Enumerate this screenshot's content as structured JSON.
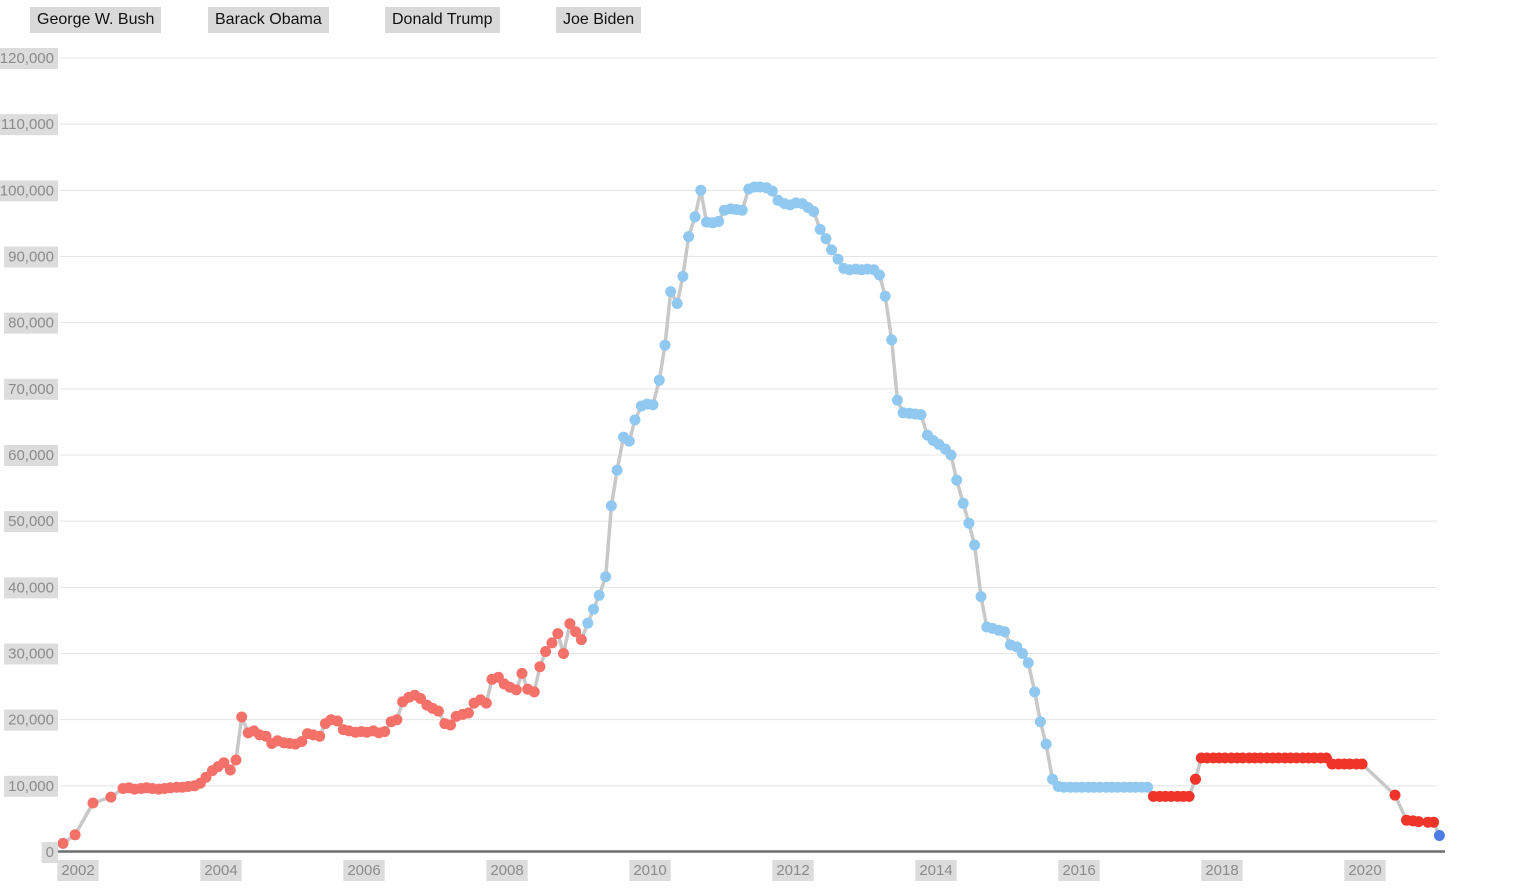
{
  "legend": {
    "items": [
      {
        "label": "George W. Bush"
      },
      {
        "label": "Barack Obama"
      },
      {
        "label": "Donald Trump"
      },
      {
        "label": "Joe Biden"
      }
    ]
  },
  "chart_data": {
    "type": "line",
    "title": "",
    "xlabel": "",
    "ylabel": "",
    "grid": true,
    "legend_position": "top-left",
    "xlim": [
      2001.55,
      2021.35
    ],
    "ylim": [
      0,
      120000
    ],
    "x_ticks": {
      "values": [
        2002,
        2004,
        2006,
        2008,
        2010,
        2012,
        2014,
        2016,
        2018,
        2020
      ],
      "labels": [
        "2002",
        "2004",
        "2006",
        "2008",
        "2010",
        "2012",
        "2014",
        "2016",
        "2018",
        "2020"
      ]
    },
    "y_ticks": {
      "values": [
        0,
        10000,
        20000,
        30000,
        40000,
        50000,
        60000,
        70000,
        80000,
        90000,
        100000,
        110000,
        120000
      ],
      "labels": [
        "0",
        "10,000",
        "20,000",
        "30,000",
        "40,000",
        "50,000",
        "60,000",
        "70,000",
        "80,000",
        "90,000",
        "100,000",
        "110,000",
        "120,000"
      ]
    },
    "colors": {
      "connector_line": "#c8c8c8",
      "gridline": "#e4e4e4",
      "axis_line": "#6f6f6f",
      "tick_text": "#8b8b8b",
      "tick_bg": "#dcdcdc",
      "legend_text": "#111111",
      "legend_bg": "#d9d9d9"
    },
    "series": [
      {
        "name": "George W. Bush",
        "color": "#f4716a",
        "points": [
          [
            2001.79,
            1300
          ],
          [
            2001.96,
            2600
          ],
          [
            2002.21,
            7400
          ],
          [
            2002.46,
            8300
          ],
          [
            2002.63,
            9600
          ],
          [
            2002.71,
            9700
          ],
          [
            2002.79,
            9500
          ],
          [
            2002.88,
            9600
          ],
          [
            2002.96,
            9700
          ],
          [
            2003.04,
            9600
          ],
          [
            2003.13,
            9500
          ],
          [
            2003.21,
            9600
          ],
          [
            2003.29,
            9700
          ],
          [
            2003.38,
            9800
          ],
          [
            2003.46,
            9800
          ],
          [
            2003.54,
            9900
          ],
          [
            2003.63,
            10000
          ],
          [
            2003.71,
            10400
          ],
          [
            2003.79,
            11300
          ],
          [
            2003.88,
            12300
          ],
          [
            2003.96,
            12900
          ],
          [
            2004.04,
            13500
          ],
          [
            2004.13,
            12400
          ],
          [
            2004.21,
            13900
          ],
          [
            2004.29,
            20400
          ],
          [
            2004.38,
            18000
          ],
          [
            2004.46,
            18300
          ],
          [
            2004.54,
            17700
          ],
          [
            2004.63,
            17500
          ],
          [
            2004.71,
            16400
          ],
          [
            2004.79,
            16800
          ],
          [
            2004.88,
            16500
          ],
          [
            2004.96,
            16400
          ],
          [
            2005.04,
            16300
          ],
          [
            2005.13,
            16700
          ],
          [
            2005.21,
            17900
          ],
          [
            2005.29,
            17700
          ],
          [
            2005.38,
            17500
          ],
          [
            2005.46,
            19400
          ],
          [
            2005.54,
            20000
          ],
          [
            2005.63,
            19800
          ],
          [
            2005.71,
            18500
          ],
          [
            2005.79,
            18300
          ],
          [
            2005.88,
            18100
          ],
          [
            2005.96,
            18200
          ],
          [
            2006.04,
            18100
          ],
          [
            2006.13,
            18300
          ],
          [
            2006.21,
            18000
          ],
          [
            2006.29,
            18200
          ],
          [
            2006.38,
            19700
          ],
          [
            2006.46,
            20000
          ],
          [
            2006.54,
            22700
          ],
          [
            2006.63,
            23400
          ],
          [
            2006.71,
            23700
          ],
          [
            2006.79,
            23200
          ],
          [
            2006.88,
            22200
          ],
          [
            2006.96,
            21700
          ],
          [
            2007.04,
            21300
          ],
          [
            2007.13,
            19400
          ],
          [
            2007.21,
            19200
          ],
          [
            2007.29,
            20500
          ],
          [
            2007.38,
            20800
          ],
          [
            2007.46,
            21000
          ],
          [
            2007.54,
            22500
          ],
          [
            2007.63,
            23000
          ],
          [
            2007.71,
            22500
          ],
          [
            2007.79,
            26100
          ],
          [
            2007.88,
            26400
          ],
          [
            2007.96,
            25400
          ],
          [
            2008.04,
            24900
          ],
          [
            2008.13,
            24500
          ],
          [
            2008.21,
            27000
          ],
          [
            2008.29,
            24600
          ],
          [
            2008.38,
            24200
          ],
          [
            2008.46,
            28000
          ],
          [
            2008.54,
            30300
          ],
          [
            2008.63,
            31600
          ],
          [
            2008.71,
            33000
          ],
          [
            2008.79,
            30000
          ],
          [
            2008.88,
            34500
          ],
          [
            2008.96,
            33300
          ],
          [
            2009.04,
            32100
          ]
        ]
      },
      {
        "name": "Barack Obama",
        "color": "#90c8f0",
        "points": [
          [
            2009.13,
            34600
          ],
          [
            2009.21,
            36700
          ],
          [
            2009.29,
            38800
          ],
          [
            2009.38,
            41600
          ],
          [
            2009.46,
            52300
          ],
          [
            2009.54,
            57700
          ],
          [
            2009.63,
            62700
          ],
          [
            2009.71,
            62100
          ],
          [
            2009.79,
            65300
          ],
          [
            2009.88,
            67400
          ],
          [
            2009.96,
            67700
          ],
          [
            2010.04,
            67600
          ],
          [
            2010.13,
            71300
          ],
          [
            2010.21,
            76600
          ],
          [
            2010.29,
            84700
          ],
          [
            2010.38,
            82900
          ],
          [
            2010.46,
            87000
          ],
          [
            2010.54,
            93000
          ],
          [
            2010.63,
            96000
          ],
          [
            2010.71,
            100000
          ],
          [
            2010.79,
            95200
          ],
          [
            2010.88,
            95100
          ],
          [
            2010.96,
            95300
          ],
          [
            2011.04,
            97000
          ],
          [
            2011.13,
            97200
          ],
          [
            2011.21,
            97100
          ],
          [
            2011.29,
            97000
          ],
          [
            2011.38,
            100200
          ],
          [
            2011.46,
            100500
          ],
          [
            2011.54,
            100500
          ],
          [
            2011.63,
            100400
          ],
          [
            2011.71,
            99900
          ],
          [
            2011.79,
            98500
          ],
          [
            2011.88,
            98000
          ],
          [
            2011.96,
            97800
          ],
          [
            2012.04,
            98100
          ],
          [
            2012.13,
            98000
          ],
          [
            2012.21,
            97400
          ],
          [
            2012.29,
            96800
          ],
          [
            2012.38,
            94100
          ],
          [
            2012.46,
            92700
          ],
          [
            2012.54,
            91000
          ],
          [
            2012.63,
            89600
          ],
          [
            2012.71,
            88200
          ],
          [
            2012.79,
            88000
          ],
          [
            2012.88,
            88100
          ],
          [
            2012.96,
            88000
          ],
          [
            2013.04,
            88100
          ],
          [
            2013.13,
            88000
          ],
          [
            2013.21,
            87200
          ],
          [
            2013.29,
            84000
          ],
          [
            2013.38,
            77400
          ],
          [
            2013.46,
            68300
          ],
          [
            2013.54,
            66400
          ],
          [
            2013.63,
            66300
          ],
          [
            2013.71,
            66200
          ],
          [
            2013.79,
            66100
          ],
          [
            2013.88,
            63000
          ],
          [
            2013.96,
            62200
          ],
          [
            2014.04,
            61600
          ],
          [
            2014.13,
            60900
          ],
          [
            2014.21,
            60000
          ],
          [
            2014.29,
            56200
          ],
          [
            2014.38,
            52700
          ],
          [
            2014.46,
            49700
          ],
          [
            2014.54,
            46400
          ],
          [
            2014.63,
            38600
          ],
          [
            2014.71,
            34000
          ],
          [
            2014.79,
            33800
          ],
          [
            2014.88,
            33500
          ],
          [
            2014.96,
            33300
          ],
          [
            2015.04,
            31300
          ],
          [
            2015.13,
            31000
          ],
          [
            2015.21,
            30000
          ],
          [
            2015.29,
            28600
          ],
          [
            2015.38,
            24200
          ],
          [
            2015.46,
            19700
          ],
          [
            2015.54,
            16300
          ],
          [
            2015.63,
            11000
          ],
          [
            2015.71,
            9900
          ],
          [
            2015.79,
            9800
          ],
          [
            2015.88,
            9800
          ],
          [
            2015.96,
            9800
          ],
          [
            2016.04,
            9800
          ],
          [
            2016.13,
            9800
          ],
          [
            2016.21,
            9800
          ],
          [
            2016.29,
            9800
          ],
          [
            2016.38,
            9800
          ],
          [
            2016.46,
            9800
          ],
          [
            2016.54,
            9800
          ],
          [
            2016.63,
            9800
          ],
          [
            2016.71,
            9800
          ],
          [
            2016.79,
            9800
          ],
          [
            2016.88,
            9800
          ],
          [
            2016.96,
            9800
          ]
        ]
      },
      {
        "name": "Donald Trump",
        "color": "#ef342a",
        "points": [
          [
            2017.04,
            8400
          ],
          [
            2017.13,
            8400
          ],
          [
            2017.21,
            8400
          ],
          [
            2017.29,
            8400
          ],
          [
            2017.38,
            8400
          ],
          [
            2017.46,
            8400
          ],
          [
            2017.54,
            8400
          ],
          [
            2017.63,
            11000
          ],
          [
            2017.71,
            14200
          ],
          [
            2017.79,
            14200
          ],
          [
            2017.88,
            14200
          ],
          [
            2017.96,
            14200
          ],
          [
            2018.04,
            14200
          ],
          [
            2018.13,
            14200
          ],
          [
            2018.21,
            14200
          ],
          [
            2018.29,
            14200
          ],
          [
            2018.38,
            14200
          ],
          [
            2018.46,
            14200
          ],
          [
            2018.54,
            14200
          ],
          [
            2018.63,
            14200
          ],
          [
            2018.71,
            14200
          ],
          [
            2018.79,
            14200
          ],
          [
            2018.88,
            14200
          ],
          [
            2018.96,
            14200
          ],
          [
            2019.04,
            14200
          ],
          [
            2019.13,
            14200
          ],
          [
            2019.21,
            14200
          ],
          [
            2019.29,
            14200
          ],
          [
            2019.38,
            14200
          ],
          [
            2019.46,
            14200
          ],
          [
            2019.54,
            13300
          ],
          [
            2019.63,
            13300
          ],
          [
            2019.71,
            13300
          ],
          [
            2019.79,
            13300
          ],
          [
            2019.88,
            13300
          ],
          [
            2019.96,
            13300
          ],
          [
            2020.42,
            8600
          ],
          [
            2020.58,
            4800
          ],
          [
            2020.67,
            4700
          ],
          [
            2020.75,
            4600
          ],
          [
            2020.88,
            4500
          ],
          [
            2020.96,
            4500
          ]
        ]
      },
      {
        "name": "Joe Biden",
        "color": "#4a7de2",
        "points": [
          [
            2021.04,
            2500
          ]
        ]
      }
    ]
  }
}
